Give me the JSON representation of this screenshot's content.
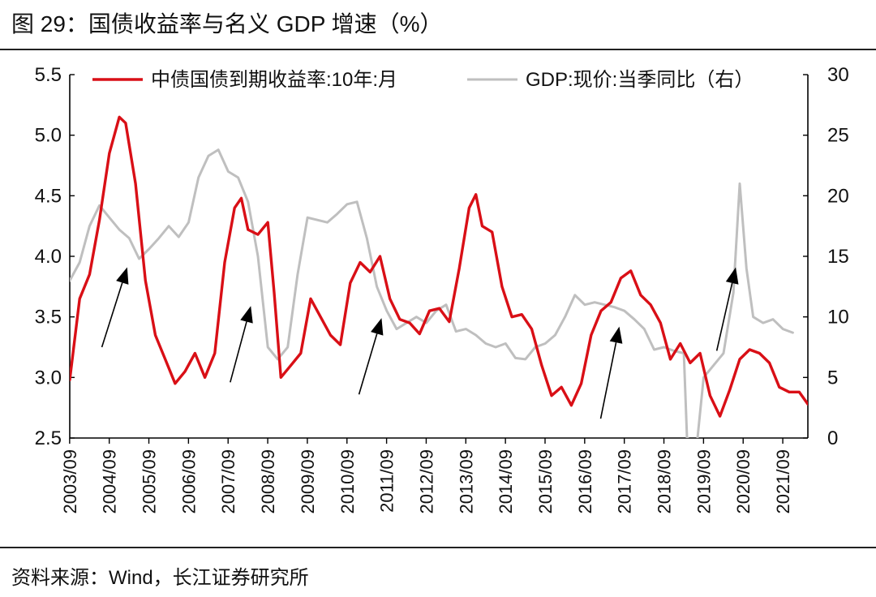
{
  "figure": {
    "title": "图 29：国债收益率与名义 GDP 增速（%）",
    "source": "资料来源：Wind，长江证券研究所"
  },
  "colors": {
    "yield": "#d90f16",
    "gdp": "#bfbfbf",
    "arrow": "#000000",
    "axis": "#000000"
  },
  "chart_data": {
    "type": "line",
    "title": "国债收益率与名义 GDP 增速（%）",
    "x_ticks": [
      "2003/09",
      "2004/09",
      "2005/09",
      "2006/09",
      "2007/09",
      "2008/09",
      "2009/09",
      "2010/09",
      "2011/09",
      "2012/09",
      "2013/09",
      "2014/09",
      "2015/09",
      "2016/09",
      "2017/09",
      "2018/09",
      "2019/09",
      "2020/09",
      "2021/09"
    ],
    "x_range": [
      2003.67,
      2022.3
    ],
    "y_left": {
      "min": 2.5,
      "max": 5.5,
      "ticks": [
        "2.5",
        "3.0",
        "3.5",
        "4.0",
        "4.5",
        "5.0",
        "5.5"
      ]
    },
    "y_right": {
      "min": 0,
      "max": 30,
      "ticks": [
        "0",
        "5",
        "10",
        "15",
        "20",
        "25",
        "30"
      ]
    },
    "series": [
      {
        "name": "中债国债到期收益率:10年:月",
        "axis": "left",
        "points": [
          [
            2003.67,
            2.98
          ],
          [
            2003.92,
            3.65
          ],
          [
            2004.17,
            3.85
          ],
          [
            2004.42,
            4.3
          ],
          [
            2004.67,
            4.85
          ],
          [
            2004.92,
            5.15
          ],
          [
            2005.08,
            5.1
          ],
          [
            2005.33,
            4.6
          ],
          [
            2005.58,
            3.8
          ],
          [
            2005.83,
            3.35
          ],
          [
            2006.08,
            3.15
          ],
          [
            2006.33,
            2.95
          ],
          [
            2006.58,
            3.05
          ],
          [
            2006.83,
            3.2
          ],
          [
            2007.08,
            3.0
          ],
          [
            2007.33,
            3.2
          ],
          [
            2007.58,
            3.95
          ],
          [
            2007.83,
            4.4
          ],
          [
            2008.0,
            4.48
          ],
          [
            2008.17,
            4.22
          ],
          [
            2008.42,
            4.18
          ],
          [
            2008.67,
            4.28
          ],
          [
            2008.83,
            3.7
          ],
          [
            2009.0,
            3.0
          ],
          [
            2009.25,
            3.1
          ],
          [
            2009.5,
            3.2
          ],
          [
            2009.75,
            3.65
          ],
          [
            2010.0,
            3.5
          ],
          [
            2010.25,
            3.35
          ],
          [
            2010.5,
            3.27
          ],
          [
            2010.75,
            3.78
          ],
          [
            2011.0,
            3.95
          ],
          [
            2011.25,
            3.87
          ],
          [
            2011.5,
            4.0
          ],
          [
            2011.75,
            3.65
          ],
          [
            2012.0,
            3.48
          ],
          [
            2012.25,
            3.45
          ],
          [
            2012.5,
            3.36
          ],
          [
            2012.75,
            3.55
          ],
          [
            2013.0,
            3.57
          ],
          [
            2013.25,
            3.46
          ],
          [
            2013.5,
            3.9
          ],
          [
            2013.75,
            4.4
          ],
          [
            2013.92,
            4.51
          ],
          [
            2014.08,
            4.25
          ],
          [
            2014.33,
            4.2
          ],
          [
            2014.58,
            3.75
          ],
          [
            2014.83,
            3.5
          ],
          [
            2015.08,
            3.52
          ],
          [
            2015.33,
            3.4
          ],
          [
            2015.58,
            3.1
          ],
          [
            2015.83,
            2.85
          ],
          [
            2016.08,
            2.92
          ],
          [
            2016.33,
            2.77
          ],
          [
            2016.58,
            2.95
          ],
          [
            2016.83,
            3.35
          ],
          [
            2017.08,
            3.55
          ],
          [
            2017.33,
            3.62
          ],
          [
            2017.58,
            3.82
          ],
          [
            2017.83,
            3.88
          ],
          [
            2018.08,
            3.68
          ],
          [
            2018.33,
            3.6
          ],
          [
            2018.58,
            3.45
          ],
          [
            2018.83,
            3.15
          ],
          [
            2019.08,
            3.28
          ],
          [
            2019.33,
            3.12
          ],
          [
            2019.58,
            3.2
          ],
          [
            2019.83,
            2.85
          ],
          [
            2020.08,
            2.68
          ],
          [
            2020.33,
            2.9
          ],
          [
            2020.58,
            3.15
          ],
          [
            2020.83,
            3.23
          ],
          [
            2021.08,
            3.2
          ],
          [
            2021.33,
            3.12
          ],
          [
            2021.58,
            2.92
          ],
          [
            2021.83,
            2.88
          ],
          [
            2022.08,
            2.88
          ],
          [
            2022.3,
            2.78
          ]
        ]
      },
      {
        "name": "GDP:现价:当季同比（右）",
        "axis": "right",
        "points": [
          [
            2003.67,
            13.0
          ],
          [
            2003.92,
            14.5
          ],
          [
            2004.17,
            17.5
          ],
          [
            2004.42,
            19.2
          ],
          [
            2004.67,
            18.2
          ],
          [
            2004.92,
            17.2
          ],
          [
            2005.17,
            16.5
          ],
          [
            2005.42,
            14.8
          ],
          [
            2005.67,
            15.6
          ],
          [
            2005.92,
            16.5
          ],
          [
            2006.17,
            17.5
          ],
          [
            2006.42,
            16.6
          ],
          [
            2006.67,
            17.8
          ],
          [
            2006.92,
            21.5
          ],
          [
            2007.17,
            23.3
          ],
          [
            2007.42,
            23.8
          ],
          [
            2007.67,
            22.0
          ],
          [
            2007.92,
            21.5
          ],
          [
            2008.17,
            19.5
          ],
          [
            2008.42,
            15.0
          ],
          [
            2008.67,
            7.5
          ],
          [
            2008.92,
            6.5
          ],
          [
            2009.17,
            7.5
          ],
          [
            2009.42,
            13.5
          ],
          [
            2009.67,
            18.2
          ],
          [
            2009.92,
            18.0
          ],
          [
            2010.17,
            17.8
          ],
          [
            2010.42,
            18.5
          ],
          [
            2010.67,
            19.3
          ],
          [
            2010.92,
            19.5
          ],
          [
            2011.17,
            16.5
          ],
          [
            2011.42,
            12.5
          ],
          [
            2011.67,
            10.5
          ],
          [
            2011.92,
            9.0
          ],
          [
            2012.17,
            9.5
          ],
          [
            2012.42,
            10.0
          ],
          [
            2012.67,
            9.5
          ],
          [
            2012.92,
            10.5
          ],
          [
            2013.17,
            11.0
          ],
          [
            2013.42,
            8.8
          ],
          [
            2013.67,
            9.0
          ],
          [
            2013.92,
            8.5
          ],
          [
            2014.17,
            7.8
          ],
          [
            2014.42,
            7.5
          ],
          [
            2014.67,
            7.8
          ],
          [
            2014.92,
            6.6
          ],
          [
            2015.17,
            6.5
          ],
          [
            2015.42,
            7.5
          ],
          [
            2015.67,
            7.8
          ],
          [
            2015.92,
            8.5
          ],
          [
            2016.17,
            10.0
          ],
          [
            2016.42,
            11.8
          ],
          [
            2016.67,
            11.0
          ],
          [
            2016.92,
            11.2
          ],
          [
            2017.17,
            11.0
          ],
          [
            2017.42,
            10.8
          ],
          [
            2017.67,
            10.5
          ],
          [
            2017.92,
            9.8
          ],
          [
            2018.17,
            9.0
          ],
          [
            2018.42,
            7.3
          ],
          [
            2018.67,
            7.5
          ],
          [
            2018.92,
            7.2
          ],
          [
            2019.17,
            7.0
          ],
          [
            2019.25,
            0.0
          ],
          [
            2019.5,
            -0.5
          ],
          [
            2019.67,
            5.0
          ],
          [
            2019.92,
            6.0
          ],
          [
            2020.17,
            7.0
          ],
          [
            2020.42,
            12.0
          ],
          [
            2020.58,
            21.0
          ],
          [
            2020.75,
            14.0
          ],
          [
            2020.92,
            10.0
          ],
          [
            2021.17,
            9.5
          ],
          [
            2021.42,
            9.8
          ],
          [
            2021.67,
            9.0
          ],
          [
            2021.92,
            8.7
          ]
        ]
      }
    ],
    "annotations": [
      {
        "type": "arrow",
        "from": [
          2004.48,
          3.25
        ],
        "to": [
          2005.12,
          3.91
        ]
      },
      {
        "type": "arrow",
        "from": [
          2007.72,
          2.96
        ],
        "to": [
          2008.24,
          3.59
        ]
      },
      {
        "type": "arrow",
        "from": [
          2010.97,
          2.86
        ],
        "to": [
          2011.54,
          3.49
        ]
      },
      {
        "type": "arrow",
        "from": [
          2017.07,
          2.66
        ],
        "to": [
          2017.54,
          3.42
        ]
      },
      {
        "type": "arrow",
        "from": [
          2020.0,
          3.22
        ],
        "to": [
          2020.48,
          3.91
        ]
      }
    ],
    "legend": {
      "position": "top"
    }
  }
}
